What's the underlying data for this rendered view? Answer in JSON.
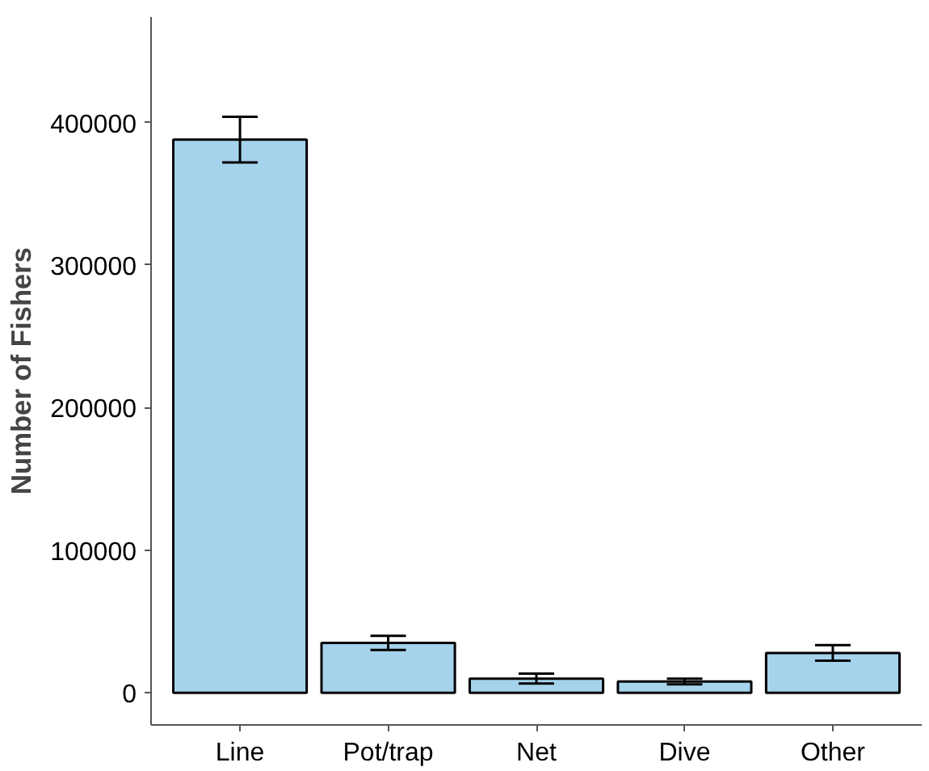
{
  "chart_data": {
    "type": "bar",
    "ylabel": "Number of Fishers",
    "categories": [
      "Line",
      "Pot/trap",
      "Net",
      "Dive",
      "Other"
    ],
    "values": [
      388000,
      35000,
      10000,
      8000,
      28000
    ],
    "errors": [
      16000,
      5000,
      3500,
      2000,
      5500
    ],
    "color": "#a6d3ec",
    "ylim": [
      -22500,
      474000
    ],
    "yticks": [
      0,
      100000,
      200000,
      300000,
      400000
    ],
    "grid": false
  }
}
